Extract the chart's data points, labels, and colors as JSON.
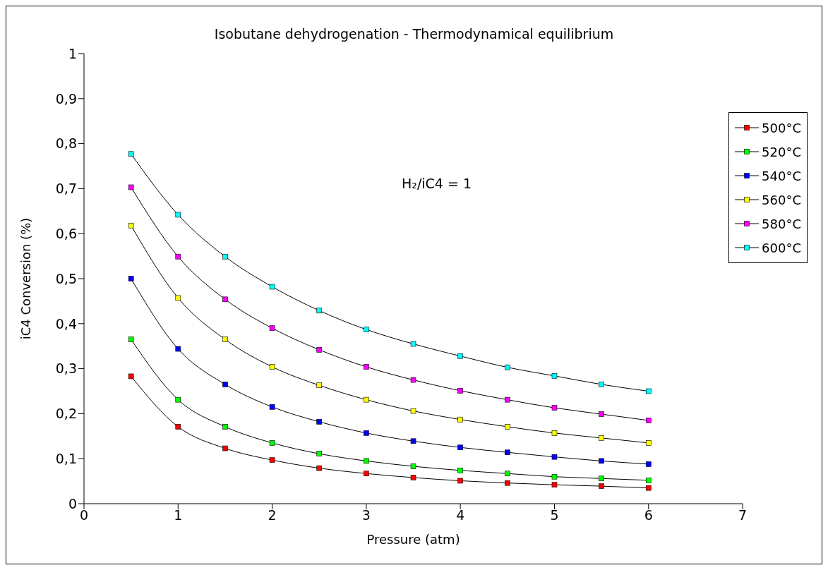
{
  "chart_data": {
    "type": "line",
    "title": "Isobutane dehydrogenation - Thermodynamical equilibrium",
    "xlabel": "Pressure (atm)",
    "ylabel": "iC4 Conversion (%)",
    "annotations": [
      "H₂/iC4 = 1"
    ],
    "x": [
      0.5,
      1,
      1.5,
      2,
      2.5,
      3,
      3.5,
      4,
      4.5,
      5,
      5.5,
      6
    ],
    "series": [
      {
        "name": "500°C",
        "color": "#ff0000",
        "values": [
          0.283,
          0.171,
          0.123,
          0.097,
          0.079,
          0.067,
          0.058,
          0.051,
          0.046,
          0.042,
          0.039,
          0.035
        ]
      },
      {
        "name": "520°C",
        "color": "#00ff00",
        "values": [
          0.365,
          0.231,
          0.171,
          0.135,
          0.111,
          0.095,
          0.083,
          0.074,
          0.067,
          0.06,
          0.056,
          0.052
        ]
      },
      {
        "name": "540°C",
        "color": "#0000ff",
        "values": [
          0.5,
          0.344,
          0.265,
          0.215,
          0.182,
          0.157,
          0.139,
          0.125,
          0.114,
          0.104,
          0.095,
          0.088
        ]
      },
      {
        "name": "560°C",
        "color": "#ffff00",
        "values": [
          0.618,
          0.457,
          0.365,
          0.304,
          0.263,
          0.231,
          0.206,
          0.187,
          0.171,
          0.157,
          0.146,
          0.135
        ]
      },
      {
        "name": "580°C",
        "color": "#ff00ff",
        "values": [
          0.703,
          0.549,
          0.454,
          0.39,
          0.342,
          0.304,
          0.275,
          0.251,
          0.231,
          0.213,
          0.199,
          0.185
        ]
      },
      {
        "name": "600°C",
        "color": "#00ffff",
        "values": [
          0.777,
          0.642,
          0.549,
          0.482,
          0.429,
          0.387,
          0.355,
          0.328,
          0.303,
          0.284,
          0.265,
          0.25
        ]
      }
    ],
    "xlim": [
      0,
      7
    ],
    "xticks": [
      0,
      1,
      2,
      3,
      4,
      5,
      6,
      7
    ],
    "ylim": [
      0,
      1
    ],
    "yticks": [
      0,
      {
        "value": 0.1,
        "label": "0,1"
      },
      {
        "value": 0.2,
        "label": "0,2"
      },
      {
        "value": 0.3,
        "label": "0,3"
      },
      {
        "value": 0.4,
        "label": "0,4"
      },
      {
        "value": 0.5,
        "label": "0,5"
      },
      {
        "value": 0.6,
        "label": "0,6"
      },
      {
        "value": 0.7,
        "label": "0,7"
      },
      {
        "value": 0.8,
        "label": "0,8"
      },
      {
        "value": 0.9,
        "label": "0,9"
      },
      1
    ],
    "grid": false,
    "legend": "top right",
    "marker": "square",
    "line_style": "solid"
  }
}
